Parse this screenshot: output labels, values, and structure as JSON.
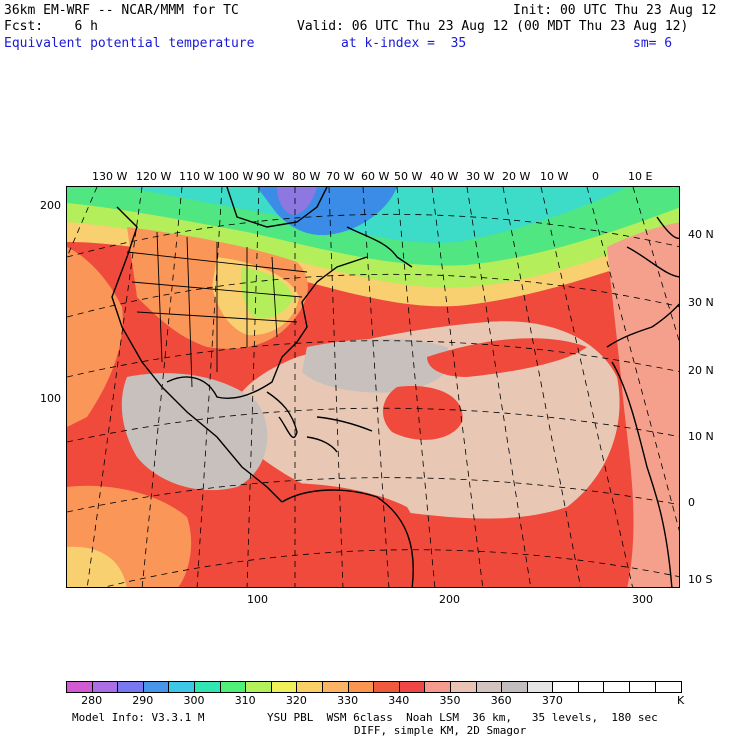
{
  "header": {
    "model_line": "36km EM-WRF -- NCAR/MMM for TC",
    "init_line": "Init: 00 UTC Thu 23 Aug 12",
    "fcst_line": "Fcst:    6 h",
    "valid_line": "Valid: 06 UTC Thu 23 Aug 12 (00 MDT Thu 23 Aug 12)",
    "field_name": "Equivalent potential temperature",
    "level_text": "at k-index =  35",
    "smooth_text": "sm= 6"
  },
  "map": {
    "lon_labels": [
      "130 W",
      "120 W",
      "110 W",
      "100 W",
      "90 W",
      "80 W",
      "70 W",
      "60 W",
      "50 W",
      "40 W",
      "30 W",
      "20 W",
      "10 W",
      "0",
      "10 E"
    ],
    "lat_labels": [
      "40 N",
      "30 N",
      "20 N",
      "10 N",
      "0",
      "10 S"
    ],
    "grid_y_labels": [
      "200",
      "100"
    ],
    "grid_x_labels": [
      "100",
      "200",
      "300"
    ],
    "colors": {
      "tropical_red": "#f04a3c",
      "warm_salmon": "#f5a08c",
      "pale_tan": "#e8c8b4",
      "gray_warm": "#c8c0bc",
      "orange": "#fa9658",
      "yellow": "#f8d070",
      "lime": "#b4ee5a",
      "green": "#50e682",
      "cyan": "#3cdcc8",
      "blue": "#3a8ce6",
      "purple": "#8c78e0"
    }
  },
  "colorbar": {
    "swatches": [
      "#d25ad2",
      "#aa6ee6",
      "#7878f0",
      "#4696ea",
      "#3cc8e6",
      "#32e6b4",
      "#50f078",
      "#b4f05a",
      "#f0f05a",
      "#fad064",
      "#fab464",
      "#fa9650",
      "#f05a3c",
      "#f04646",
      "#f59a8c",
      "#ebc3b4",
      "#d2c3be",
      "#c3bebe",
      "#e6e6e6",
      "#ffffff",
      "#ffffff",
      "#ffffff",
      "#ffffff",
      "#ffffff"
    ],
    "labels": [
      "280",
      "290",
      "300",
      "310",
      "320",
      "330",
      "340",
      "350",
      "360",
      "370"
    ],
    "unit": "K"
  },
  "footer": {
    "model_info": "Model Info: V3.3.1 M",
    "physics": "YSU PBL  WSM 6class  Noah LSM  36 km,   35 levels,  180 sec",
    "diff": "DIFF, simple KM, 2D Smagor"
  }
}
